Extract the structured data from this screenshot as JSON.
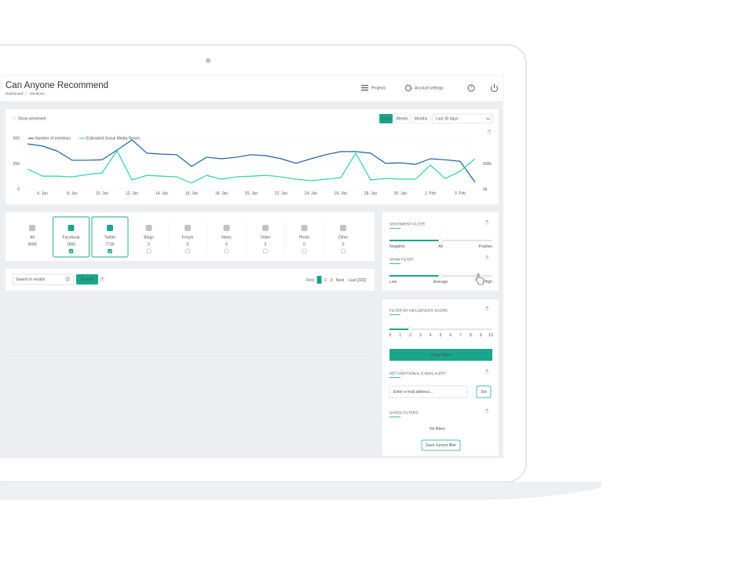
{
  "header": {
    "title": "Can Anyone Recommend",
    "breadcrumb": [
      "Dashboard",
      "Mentions"
    ],
    "nav": [
      "Projects",
      "Account settings"
    ]
  },
  "help": "?",
  "toolbar": {
    "sentiment_toggle": "Show sentiment",
    "periods": [
      "Days",
      "Weeks",
      "Months"
    ],
    "range": "Last 30 days"
  },
  "chart_data": {
    "type": "line",
    "categories": [
      null,
      "6. Jan",
      null,
      "8. Jan",
      null,
      "10. Jan",
      null,
      "12. Jan",
      null,
      "14. Jan",
      null,
      "16. Jan",
      null,
      "18. Jan",
      null,
      "20. Jan",
      null,
      "22. Jan",
      null,
      "24. Jan",
      null,
      "26. Jan",
      null,
      "28. Jan",
      null,
      "30. Jan",
      null,
      "1. Feb",
      null,
      "3. Feb",
      null
    ],
    "series": [
      {
        "name": "Number of mentions",
        "color": "#1f5fa8",
        "values": [
          445,
          425,
          375,
          285,
          285,
          290,
          385,
          485,
          355,
          345,
          340,
          225,
          315,
          300,
          315,
          340,
          330,
          300,
          255,
          300,
          340,
          370,
          370,
          355,
          255,
          260,
          245,
          300,
          290,
          275,
          70
        ]
      },
      {
        "name": "Estimated Social Media Reach",
        "color": "#2ed3a0",
        "axis": "y2",
        "values": [
          400,
          260,
          260,
          245,
          290,
          325,
          755,
          185,
          275,
          260,
          245,
          125,
          275,
          200,
          245,
          260,
          275,
          245,
          200,
          170,
          200,
          230,
          710,
          185,
          215,
          200,
          200,
          475,
          215,
          355,
          600
        ]
      }
    ],
    "ylim": [
      0,
      500
    ],
    "yticks": [
      0,
      250,
      500
    ],
    "y2lim": [
      0,
      1000
    ],
    "y2ticks": [
      {
        "value": 0,
        "label": "0k"
      },
      {
        "value": 500,
        "label": "500k"
      }
    ],
    "grid": true
  },
  "sources": [
    {
      "label": "All",
      "count": 9586,
      "selected": false
    },
    {
      "label": "Facebook",
      "count": 1856,
      "selected": true
    },
    {
      "label": "Twitter",
      "count": 7730,
      "selected": true
    },
    {
      "label": "Blogs",
      "count": 0,
      "selected": false
    },
    {
      "label": "Forum",
      "count": 0,
      "selected": false
    },
    {
      "label": "News",
      "count": 0,
      "selected": false
    },
    {
      "label": "Video",
      "count": 0,
      "selected": false
    },
    {
      "label": "Photo",
      "count": 0,
      "selected": false
    },
    {
      "label": "Other",
      "count": 0,
      "selected": false
    }
  ],
  "search": {
    "placeholder": "Search in results",
    "button": "Search",
    "pagination": [
      "First",
      "1",
      "2",
      "3",
      "Next",
      "Last [333]"
    ]
  },
  "filters": {
    "sentiment": {
      "title": "SENTIMENT FILTER",
      "labels": [
        "Negative",
        "All",
        "Positive"
      ]
    },
    "spam": {
      "title": "SPAM FILTER",
      "labels": [
        "Low",
        "Average",
        "High"
      ]
    },
    "influencer": {
      "title": "FILTER BY INFLUENCER SCORE",
      "scale": [
        0,
        1,
        2,
        3,
        4,
        5,
        6,
        7,
        8,
        9,
        10
      ]
    },
    "clear": "Clear filters",
    "alert": {
      "title": "SET ADDITIONAL E-MAIL ALERT",
      "placeholder": "Enter e-mail address...",
      "button": "Set"
    },
    "saved": {
      "title": "SAVED FILTERS",
      "empty": "No filters",
      "button": "Save current filter"
    }
  }
}
